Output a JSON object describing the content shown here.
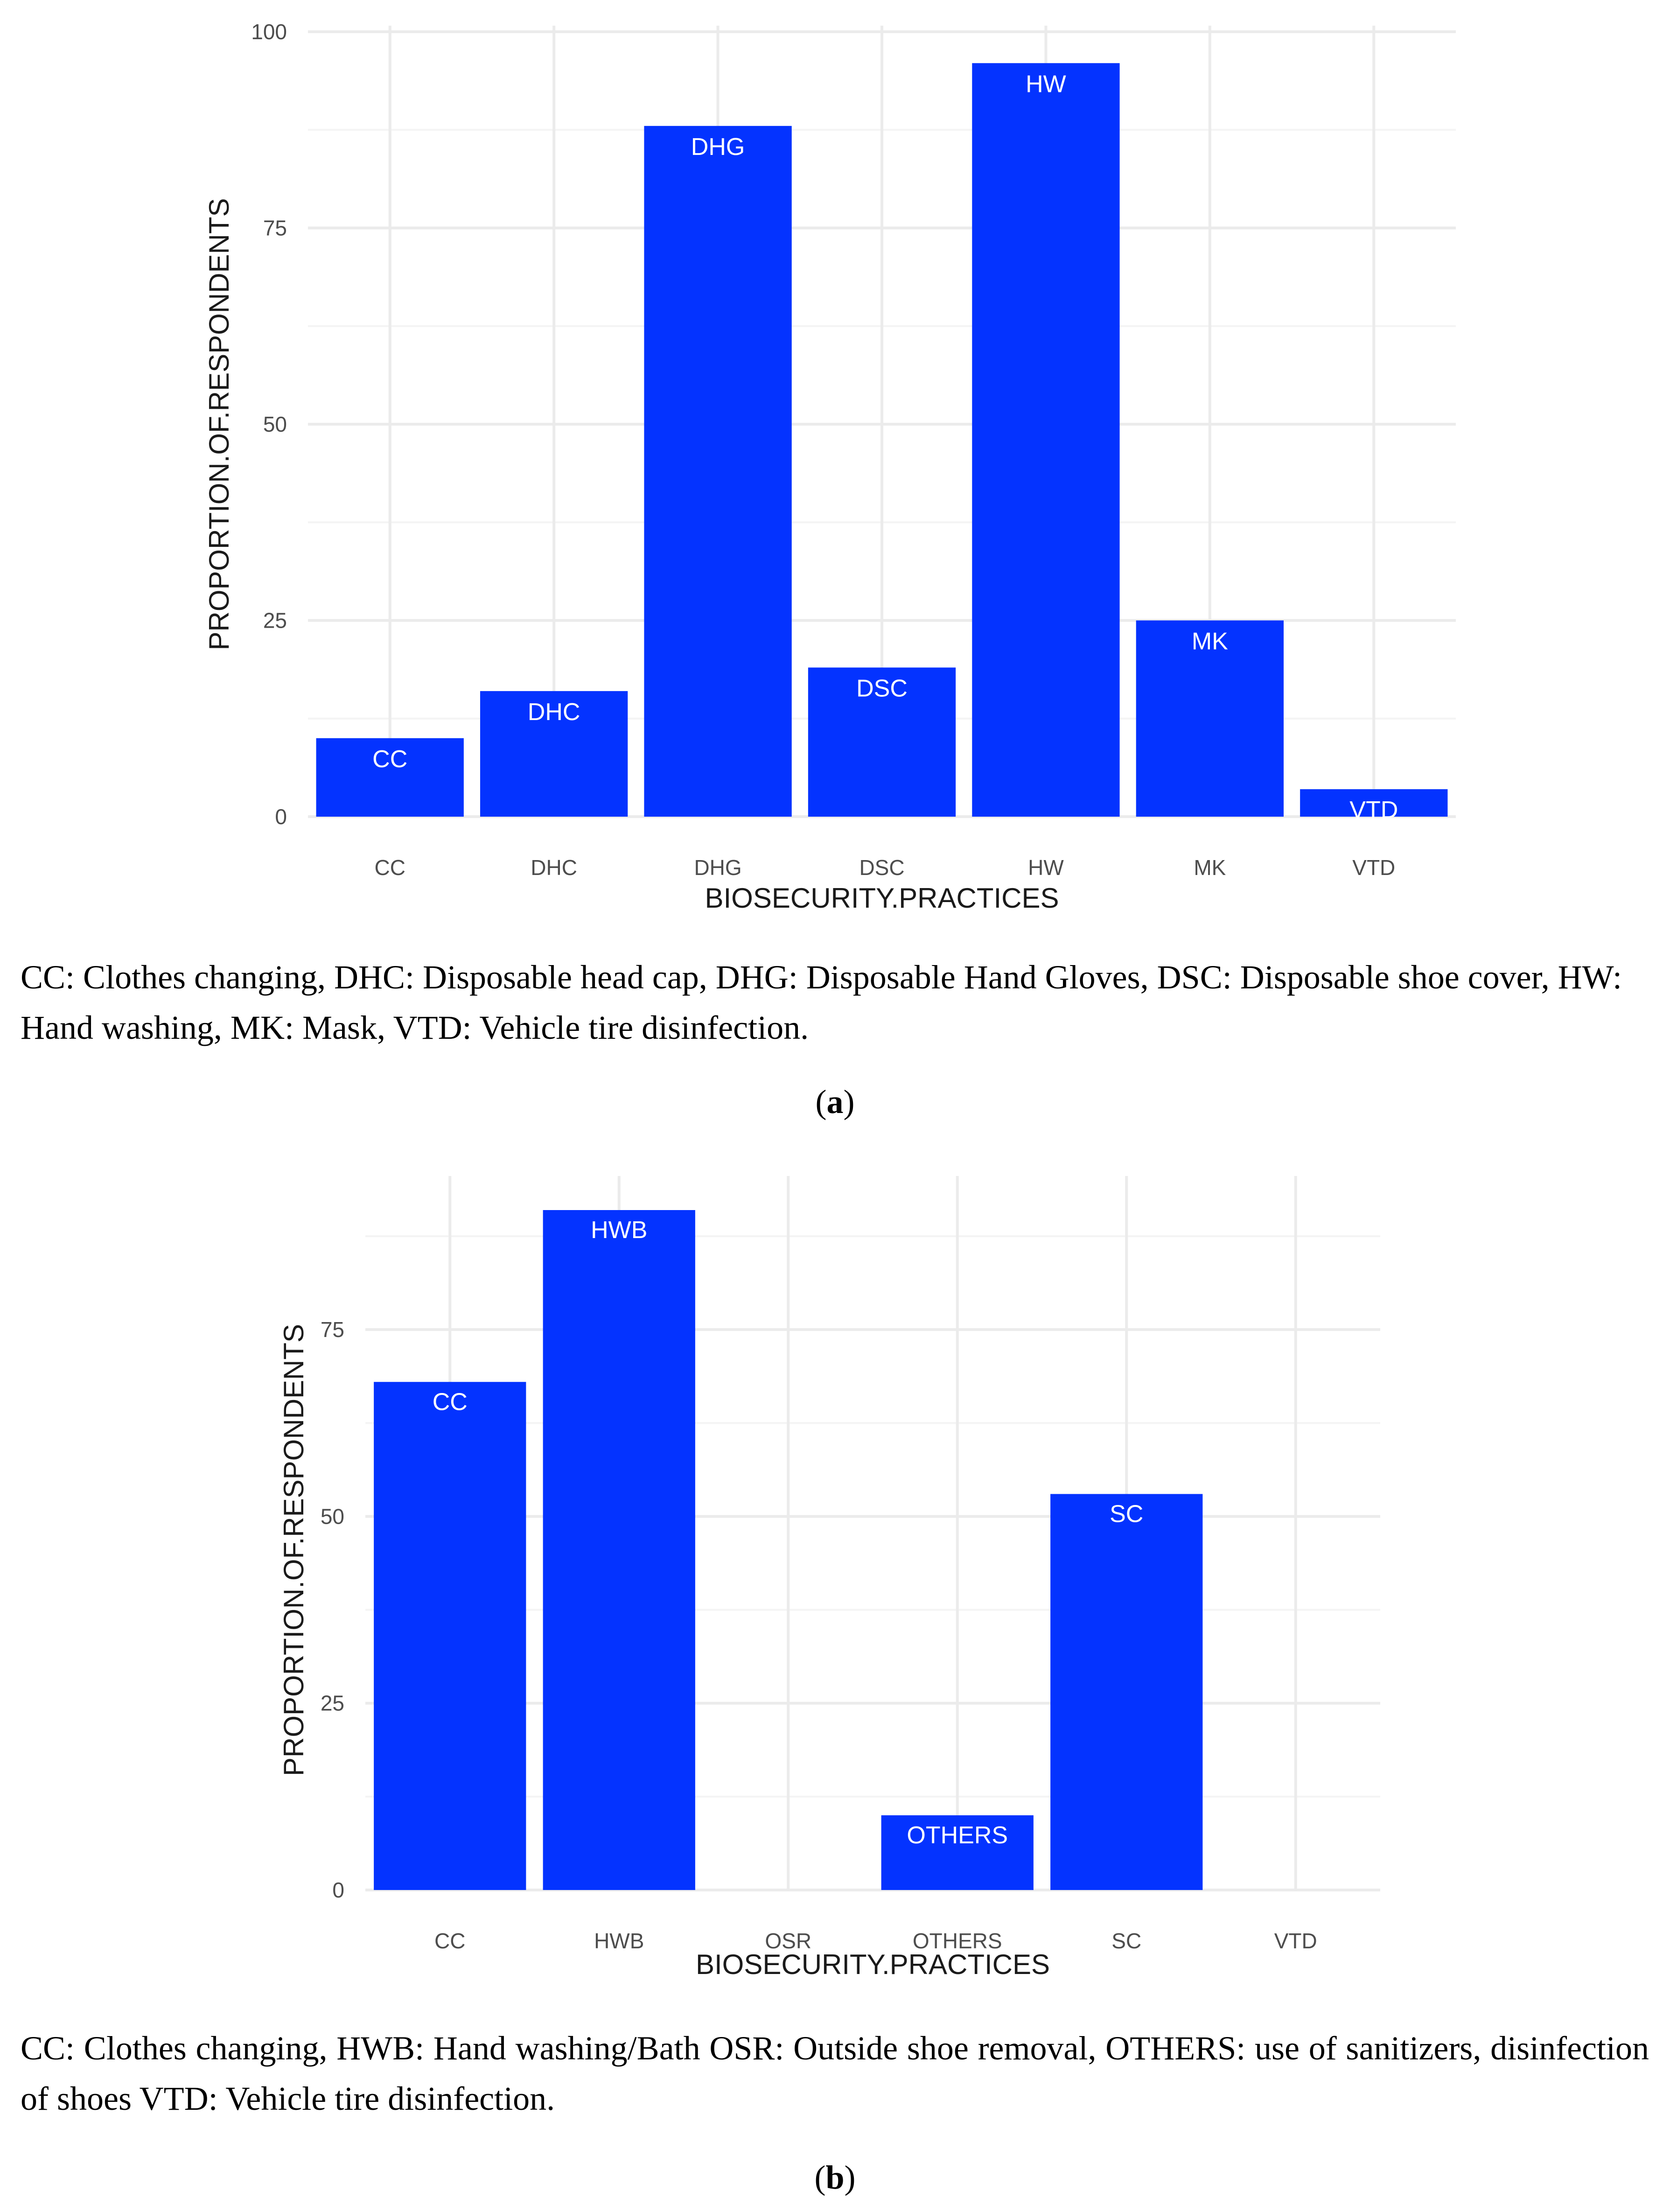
{
  "chart_data": [
    {
      "type": "bar",
      "categories": [
        "CC",
        "DHC",
        "DHG",
        "DSC",
        "HW",
        "MK",
        "VTD"
      ],
      "values": [
        10,
        16,
        88,
        19,
        96,
        25,
        3.5
      ],
      "bar_labels": [
        "CC",
        "DHC",
        "DHG",
        "DSC",
        "HW",
        "MK",
        "VTD"
      ],
      "yticks": [
        0,
        25,
        50,
        75,
        100
      ],
      "ylim": [
        0,
        100
      ],
      "xlabel": "BIOSECURITY.PRACTICES",
      "ylabel": "PROPORTION.OF.RESPONDENTS",
      "bar_color": "#0433ff",
      "grid": true,
      "legend": false
    },
    {
      "type": "bar",
      "categories": [
        "CC",
        "HWB",
        "OSR",
        "OTHERS",
        "SC",
        "VTD"
      ],
      "values": [
        68,
        91,
        0,
        10,
        53,
        0
      ],
      "bar_labels": [
        "CC",
        "HWB",
        "",
        "OTHERS",
        "SC",
        ""
      ],
      "yticks": [
        0,
        25,
        50,
        75
      ],
      "ylim": [
        0,
        91
      ],
      "xlabel": "BIOSECURITY.PRACTICES",
      "ylabel": "PROPORTION.OF.RESPONDENTS",
      "bar_color": "#0433ff",
      "grid": true,
      "legend": false
    }
  ],
  "captions": {
    "a": "CC: Clothes changing, DHC: Disposable head cap, DHG: Disposable Hand Gloves, DSC: Disposable shoe cover, HW: Hand washing, MK: Mask, VTD: Vehicle tire disinfection.",
    "b": "CC: Clothes changing, HWB: Hand washing/Bath OSR: Outside shoe removal, OTHERS: use of sanitizers, disinfection of shoes VTD: Vehicle tire disinfection."
  },
  "panel_tags": {
    "a": "a",
    "b": "b"
  }
}
